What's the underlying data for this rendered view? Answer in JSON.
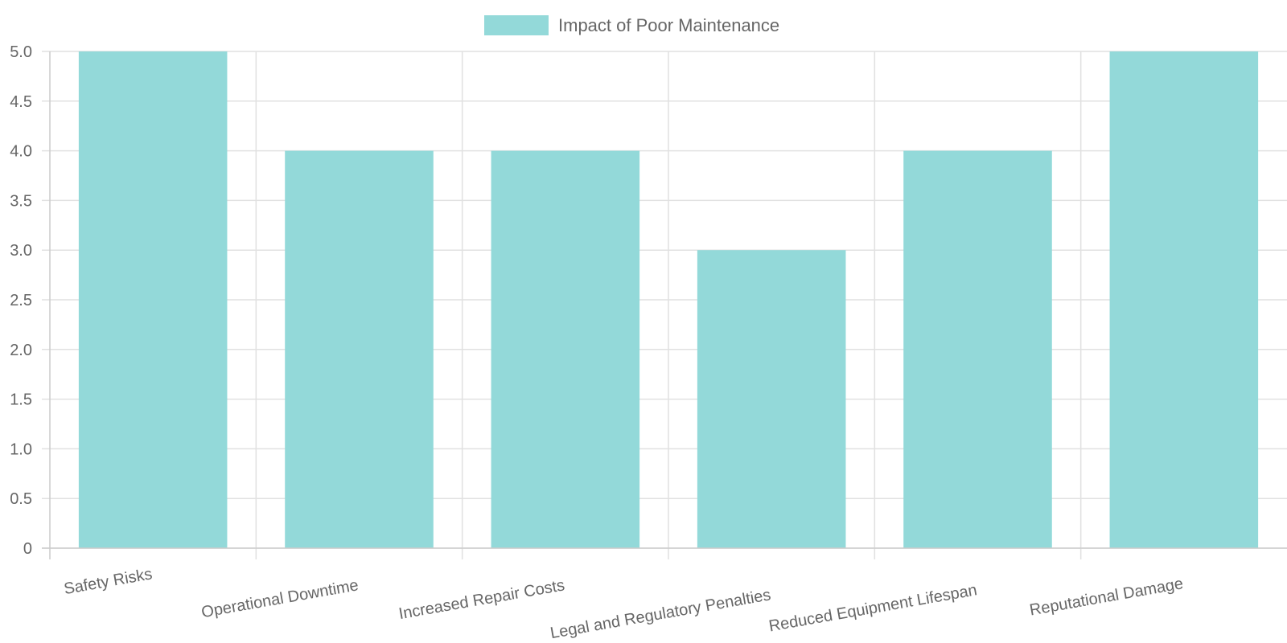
{
  "chart_data": {
    "type": "bar",
    "title": "",
    "xlabel": "",
    "ylabel": "",
    "categories": [
      "Safety Risks",
      "Operational Downtime",
      "Increased Repair Costs",
      "Legal and Regulatory Penalties",
      "Reduced Equipment Lifespan",
      "Reputational Damage"
    ],
    "series": [
      {
        "name": "Impact of Poor Maintenance",
        "values": [
          5,
          4,
          4,
          3,
          4,
          5
        ],
        "color": "#93d9d9"
      }
    ],
    "ylim": [
      0,
      5
    ],
    "yticks": [
      "0",
      "0.5",
      "1.0",
      "1.5",
      "2.0",
      "2.5",
      "3.0",
      "3.5",
      "4.0",
      "4.5",
      "5.0"
    ],
    "ytick_values": [
      0,
      0.5,
      1,
      1.5,
      2,
      2.5,
      3,
      3.5,
      4,
      4.5,
      5
    ],
    "grid": true,
    "legend_position": "top-center"
  }
}
